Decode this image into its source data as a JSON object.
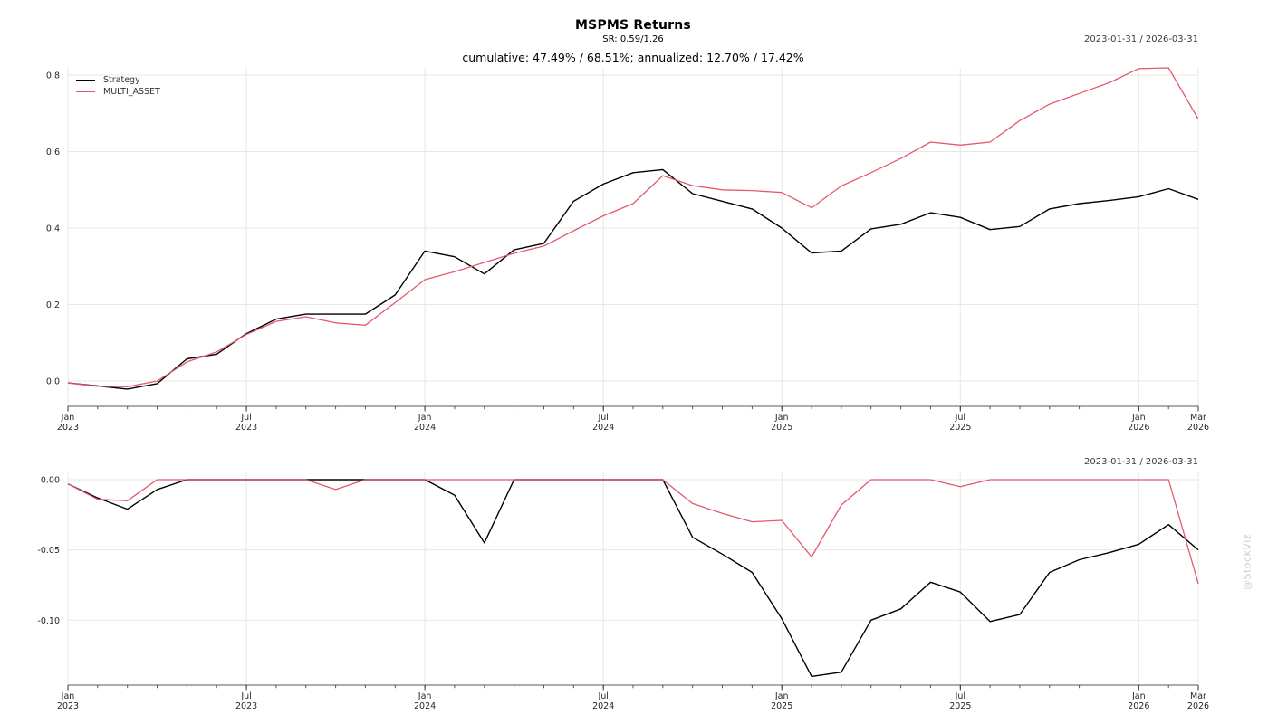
{
  "header": {
    "title": "MSPMS Returns",
    "subtitle": "SR: 0.59/1.26",
    "stats_line": "cumulative: 47.49% / 68.51%; annualized: 12.70% / 17.42%"
  },
  "date_range_top": "2023-01-31 / 2026-03-31",
  "date_range_bottom": "2023-01-31 / 2026-03-31",
  "watermark": "@StockViz",
  "legend": [
    {
      "label": "Strategy",
      "color": "#000000"
    },
    {
      "label": "MULTI_ASSET",
      "color": "#e4596f"
    }
  ],
  "colors": {
    "strategy": "#000000",
    "multi_asset": "#e4596f",
    "grid": "#e7e7e7",
    "spine": "#7a7a7a",
    "tick": "#555555",
    "tick_label": "#262626",
    "watermark": "#cbcbcb"
  },
  "chart_data": [
    {
      "type": "line",
      "panel": "cumulative-returns",
      "title": "MSPMS Returns",
      "x": [
        "2023-01",
        "2023-02",
        "2023-03",
        "2023-04",
        "2023-05",
        "2023-06",
        "2023-07",
        "2023-08",
        "2023-09",
        "2023-10",
        "2023-11",
        "2023-12",
        "2024-01",
        "2024-02",
        "2024-03",
        "2024-04",
        "2024-05",
        "2024-06",
        "2024-07",
        "2024-08",
        "2024-09",
        "2024-10",
        "2024-11",
        "2024-12",
        "2025-01",
        "2025-02",
        "2025-03",
        "2025-04",
        "2025-05",
        "2025-06",
        "2025-07",
        "2025-08",
        "2025-09",
        "2025-10",
        "2025-11",
        "2025-12",
        "2026-01",
        "2026-02",
        "2026-03"
      ],
      "series": [
        {
          "name": "Strategy",
          "color": "#000000",
          "values": [
            -0.005,
            -0.013,
            -0.021,
            -0.007,
            0.058,
            0.07,
            0.124,
            0.162,
            0.175,
            0.175,
            0.175,
            0.225,
            0.34,
            0.325,
            0.28,
            0.343,
            0.36,
            0.47,
            0.515,
            0.545,
            0.553,
            0.49,
            0.47,
            0.45,
            0.4,
            0.335,
            0.34,
            0.398,
            0.41,
            0.44,
            0.428,
            0.396,
            0.404,
            0.45,
            0.464,
            0.472,
            0.482,
            0.503,
            0.475
          ]
        },
        {
          "name": "MULTI_ASSET",
          "color": "#e4596f",
          "values": [
            -0.005,
            -0.014,
            -0.015,
            0.0,
            0.05,
            0.076,
            0.122,
            0.156,
            0.168,
            0.152,
            0.146,
            0.205,
            0.265,
            0.286,
            0.31,
            0.334,
            0.353,
            0.393,
            0.432,
            0.464,
            0.537,
            0.511,
            0.5,
            0.498,
            0.493,
            0.453,
            0.51,
            0.545,
            0.582,
            0.625,
            0.617,
            0.625,
            0.681,
            0.724,
            0.752,
            0.78,
            0.817,
            0.819,
            0.685
          ]
        }
      ],
      "ylim": [
        -0.0663,
        0.819
      ],
      "yticks": [
        0.0,
        0.2,
        0.4,
        0.6,
        0.8
      ],
      "ytick_labels": [
        "0.0",
        "0.2",
        "0.4",
        "0.6",
        "0.8"
      ],
      "xticks_major": [
        {
          "i": 0,
          "line1": "Jan",
          "line2": "2023"
        },
        {
          "i": 6,
          "line1": "Jul",
          "line2": "2023"
        },
        {
          "i": 12,
          "line1": "Jan",
          "line2": "2024"
        },
        {
          "i": 18,
          "line1": "Jul",
          "line2": "2024"
        },
        {
          "i": 24,
          "line1": "Jan",
          "line2": "2025"
        },
        {
          "i": 30,
          "line1": "Jul",
          "line2": "2025"
        },
        {
          "i": 36,
          "line1": "Jan",
          "line2": "2026"
        },
        {
          "i": 38,
          "line1": "Mar",
          "line2": "2026"
        }
      ],
      "grid": true,
      "legend_position": "top-left"
    },
    {
      "type": "line",
      "panel": "drawdown",
      "title": "",
      "x": [
        "2023-01",
        "2023-02",
        "2023-03",
        "2023-04",
        "2023-05",
        "2023-06",
        "2023-07",
        "2023-08",
        "2023-09",
        "2023-10",
        "2023-11",
        "2023-12",
        "2024-01",
        "2024-02",
        "2024-03",
        "2024-04",
        "2024-05",
        "2024-06",
        "2024-07",
        "2024-08",
        "2024-09",
        "2024-10",
        "2024-11",
        "2024-12",
        "2025-01",
        "2025-02",
        "2025-03",
        "2025-04",
        "2025-05",
        "2025-06",
        "2025-07",
        "2025-08",
        "2025-09",
        "2025-10",
        "2025-11",
        "2025-12",
        "2026-01",
        "2026-02",
        "2026-03"
      ],
      "series": [
        {
          "name": "Strategy",
          "color": "#000000",
          "values": [
            -0.003,
            -0.013,
            -0.021,
            -0.007,
            0,
            0,
            0,
            0,
            0,
            0,
            0,
            0,
            0,
            -0.011,
            -0.045,
            0,
            0,
            0,
            0,
            0,
            0,
            -0.041,
            -0.053,
            -0.066,
            -0.099,
            -0.14,
            -0.137,
            -0.1,
            -0.092,
            -0.073,
            -0.08,
            -0.101,
            -0.096,
            -0.066,
            -0.057,
            -0.052,
            -0.046,
            -0.032,
            -0.05
          ]
        },
        {
          "name": "MULTI_ASSET",
          "color": "#e4596f",
          "values": [
            -0.003,
            -0.014,
            -0.015,
            0,
            0,
            0,
            0,
            0,
            0,
            -0.007,
            0,
            0,
            0,
            0,
            0,
            0,
            0,
            0,
            0,
            0,
            0,
            -0.017,
            -0.024,
            -0.03,
            -0.029,
            -0.055,
            -0.018,
            0,
            0,
            0,
            -0.005,
            0,
            0,
            0,
            0,
            0,
            0,
            0,
            -0.074
          ]
        }
      ],
      "ylim": [
        -0.1462,
        0.0058
      ],
      "yticks": [
        0.0,
        -0.05,
        -0.1
      ],
      "ytick_labels": [
        "0.00",
        "-0.05",
        "-0.10"
      ],
      "xticks_major": [
        {
          "i": 0,
          "line1": "Jan",
          "line2": "2023"
        },
        {
          "i": 6,
          "line1": "Jul",
          "line2": "2023"
        },
        {
          "i": 12,
          "line1": "Jan",
          "line2": "2024"
        },
        {
          "i": 18,
          "line1": "Jul",
          "line2": "2024"
        },
        {
          "i": 24,
          "line1": "Jan",
          "line2": "2025"
        },
        {
          "i": 30,
          "line1": "Jul",
          "line2": "2025"
        },
        {
          "i": 36,
          "line1": "Jan",
          "line2": "2026"
        },
        {
          "i": 38,
          "line1": "Mar",
          "line2": "2026"
        }
      ],
      "grid": true,
      "legend_position": "none"
    }
  ]
}
